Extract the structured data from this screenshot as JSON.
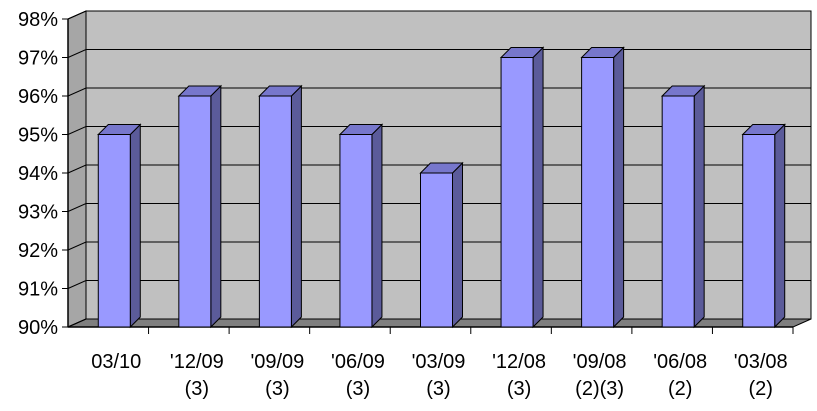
{
  "chart_data": {
    "type": "bar",
    "categories": [
      [
        "03/10"
      ],
      [
        "'12/09",
        "(3)"
      ],
      [
        "'09/09",
        "(3)"
      ],
      [
        "'06/09",
        "(3)"
      ],
      [
        "'03/09",
        "(3)"
      ],
      [
        "'12/08",
        "(3)"
      ],
      [
        "'09/08",
        "(2)(3)"
      ],
      [
        "'06/08",
        "(2)"
      ],
      [
        "'03/08",
        "(2)"
      ]
    ],
    "values": [
      95,
      96,
      96,
      95,
      94,
      97,
      97,
      96,
      95
    ],
    "ylim": [
      90,
      98
    ],
    "yticks": [
      "90%",
      "91%",
      "92%",
      "93%",
      "94%",
      "95%",
      "96%",
      "97%",
      "98%"
    ],
    "grid": true,
    "legend": "none",
    "colors": {
      "bar_front": "#9999ff",
      "bar_side": "#5b5b9a",
      "bar_top": "#7777cc",
      "plot_back": "#c0c0c0",
      "floor": "#7f7f7f",
      "gridline": "#000000"
    }
  }
}
